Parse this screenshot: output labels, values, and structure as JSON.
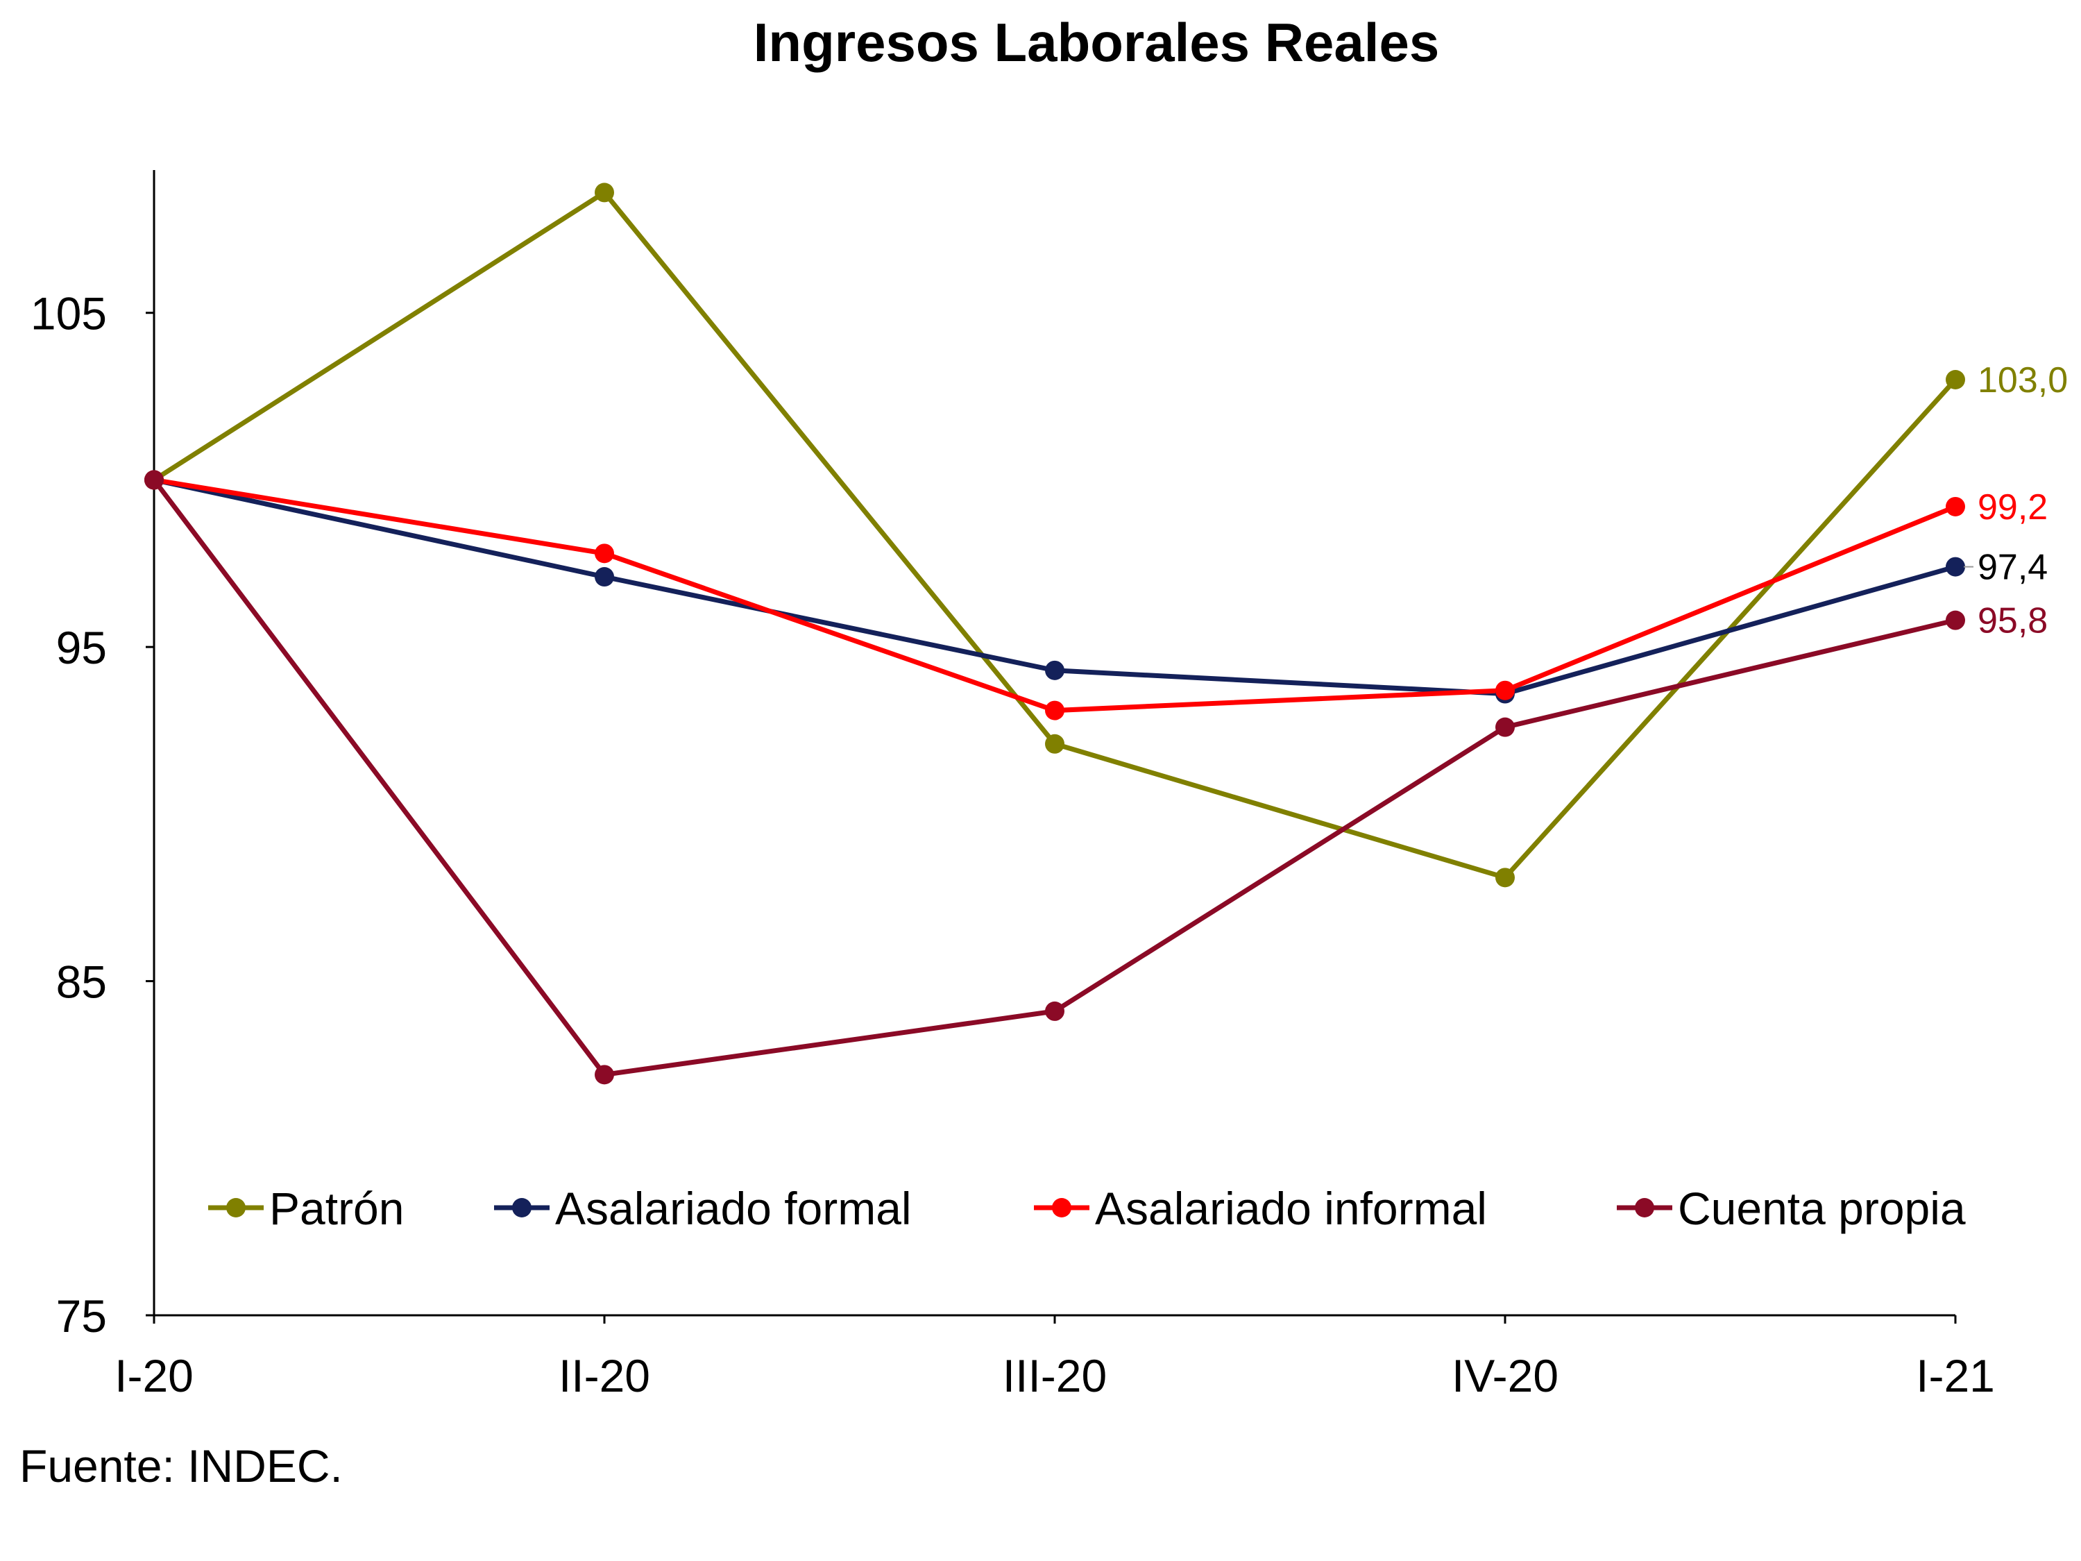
{
  "chart_data": {
    "type": "line",
    "title": "Ingresos Laborales Reales",
    "xlabel": "",
    "ylabel": "",
    "categories": [
      "I-20",
      "II-20",
      "III-20",
      "IV-20",
      "I-21"
    ],
    "ylim": [
      75,
      110
    ],
    "yticks": [
      75,
      85,
      95,
      105
    ],
    "grid": false,
    "legend_position": "bottom",
    "series": [
      {
        "name": "Patrón",
        "color": "#808000",
        "values": [
          100,
          108.6,
          92.1,
          88.1,
          103.0
        ],
        "end_label": "103,0",
        "end_label_color": "#808000"
      },
      {
        "name": "Asalariado formal",
        "color": "#14215a",
        "values": [
          100,
          97.1,
          94.3,
          93.6,
          97.4
        ],
        "end_label": "97,4",
        "end_label_color": "#000000"
      },
      {
        "name": "Asalariado informal",
        "color": "#ff0000",
        "values": [
          100,
          97.8,
          93.1,
          93.7,
          99.2
        ],
        "end_label": "99,2",
        "end_label_color": "#ff0000"
      },
      {
        "name": "Cuenta propia",
        "color": "#8b0a26",
        "values": [
          100,
          82.2,
          84.1,
          92.6,
          95.8
        ],
        "end_label": "95,8",
        "end_label_color": "#8b0a26"
      }
    ]
  },
  "source": "Fuente: INDEC."
}
